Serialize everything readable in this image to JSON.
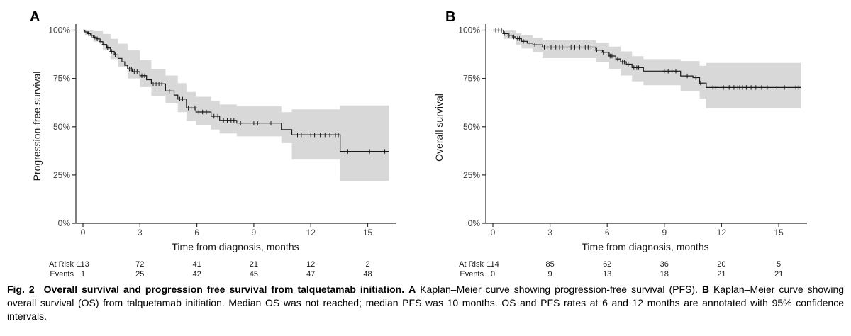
{
  "figure": {
    "panels": [
      {
        "letter": "A",
        "y_axis_label": "Progression-free survival",
        "x_axis_label": "Time from diagnosis, months",
        "y_ticks": [
          "100%",
          "75%",
          "50%",
          "25%",
          "0%"
        ],
        "x_ticks": [
          "0",
          "3",
          "6",
          "9",
          "12",
          "15"
        ],
        "risk_table": {
          "at_risk_label": "At Risk",
          "events_label": "Events",
          "at_risk": [
            "113",
            "72",
            "41",
            "21",
            "12",
            "2"
          ],
          "events": [
            "1",
            "25",
            "42",
            "45",
            "47",
            "48"
          ]
        }
      },
      {
        "letter": "B",
        "y_axis_label": "Overall survival",
        "x_axis_label": "Time from diagnosis, months",
        "y_ticks": [
          "100%",
          "75%",
          "50%",
          "25%",
          "0%"
        ],
        "x_ticks": [
          "0",
          "3",
          "6",
          "9",
          "12",
          "15"
        ],
        "risk_table": {
          "at_risk_label": "At Risk",
          "events_label": "Events",
          "at_risk": [
            "114",
            "85",
            "62",
            "36",
            "20",
            "5"
          ],
          "events": [
            "0",
            "9",
            "13",
            "18",
            "21",
            "21"
          ]
        }
      }
    ],
    "caption": {
      "runs": [
        {
          "text": "Fig. 2",
          "bold": true,
          "gap_after": true
        },
        {
          "text": "Overall survival and progression free survival from talquetamab initiation.",
          "bold": true
        },
        {
          "text": " ",
          "bold": false
        },
        {
          "text": "A",
          "bold": true
        },
        {
          "text": " Kaplan–Meier curve showing progression-free survival (PFS). ",
          "bold": false
        },
        {
          "text": "B",
          "bold": true
        },
        {
          "text": " Kaplan–Meier curve showing overall survival (OS) from talquetamab initiation. Median OS was not reached; median PFS was 10 months. OS and PFS rates at 6 and 12 months are annotated with 95% confidence intervals.",
          "bold": false
        }
      ]
    }
  },
  "colors": {
    "ci_band": "#d8d8d8",
    "curve": "#1a1a1a",
    "axis": "#2b2b2b",
    "tick_text": "#3d3d3d",
    "background": "#ffffff"
  },
  "chart_data": [
    {
      "type": "line",
      "subtype": "kaplan-meier-step",
      "panel": "A",
      "title": "Progression-free survival (PFS) from talquetamab initiation",
      "xlabel": "Time from diagnosis, months",
      "ylabel": "Progression-free survival",
      "xlim": [
        0,
        16.2
      ],
      "ylim": [
        0,
        100
      ],
      "x_ticks_months": [
        0,
        3,
        6,
        9,
        12,
        15
      ],
      "y_ticks_percent": [
        100,
        75,
        50,
        25,
        0
      ],
      "grid": false,
      "legend": "none",
      "median_months": 10,
      "steps_t_pct": [
        [
          0,
          100
        ],
        [
          0.1,
          99.1
        ],
        [
          0.25,
          98.2
        ],
        [
          0.4,
          97.3
        ],
        [
          0.55,
          96.4
        ],
        [
          0.7,
          95.5
        ],
        [
          0.9,
          94.0
        ],
        [
          1.05,
          92.6
        ],
        [
          1.25,
          90.8
        ],
        [
          1.45,
          89.0
        ],
        [
          1.65,
          87.2
        ],
        [
          1.85,
          85.4
        ],
        [
          2.05,
          83.6
        ],
        [
          2.2,
          81.8
        ],
        [
          2.35,
          79.9
        ],
        [
          2.6,
          78.5
        ],
        [
          3.0,
          76.4
        ],
        [
          3.35,
          74.3
        ],
        [
          3.6,
          72.2
        ],
        [
          4.35,
          68.5
        ],
        [
          4.8,
          66.4
        ],
        [
          5.0,
          64.3
        ],
        [
          5.45,
          59.7
        ],
        [
          5.95,
          57.6
        ],
        [
          6.75,
          55.4
        ],
        [
          7.2,
          53.3
        ],
        [
          8.1,
          51.9
        ],
        [
          10.45,
          48.5
        ],
        [
          11.0,
          45.8
        ],
        [
          13.55,
          37.2
        ],
        [
          16.1,
          37.2
        ]
      ],
      "censor_times": [
        0.2,
        0.3,
        0.45,
        0.6,
        0.75,
        0.95,
        1.1,
        1.3,
        1.5,
        1.7,
        2.45,
        2.55,
        2.7,
        2.85,
        3.1,
        3.25,
        3.7,
        3.85,
        4.0,
        4.15,
        4.55,
        5.1,
        5.25,
        5.55,
        5.7,
        5.9,
        6.1,
        6.3,
        6.5,
        6.9,
        7.1,
        7.4,
        7.6,
        7.8,
        7.95,
        8.3,
        9.0,
        9.2,
        9.9,
        11.3,
        11.5,
        11.75,
        12.0,
        12.2,
        12.5,
        12.75,
        13.0,
        13.3,
        13.45,
        13.8,
        13.95,
        15.1,
        15.9
      ],
      "ci_band_t_lo_hi": [
        [
          0.1,
          97.5,
          100
        ],
        [
          0.55,
          94,
          99.5
        ],
        [
          1.05,
          89.5,
          98
        ],
        [
          1.45,
          85,
          95.5
        ],
        [
          1.85,
          81,
          93
        ],
        [
          2.35,
          75,
          89.5
        ],
        [
          3.0,
          70.5,
          84.5
        ],
        [
          3.6,
          66,
          80
        ],
        [
          4.35,
          62,
          76.5
        ],
        [
          5.0,
          57.5,
          72.5
        ],
        [
          5.45,
          53,
          68
        ],
        [
          5.95,
          51,
          65.5
        ],
        [
          6.75,
          48.5,
          63.5
        ],
        [
          7.2,
          46.5,
          61.5
        ],
        [
          8.1,
          45,
          60.5
        ],
        [
          10.45,
          41.5,
          57.5
        ],
        [
          11.0,
          33,
          59
        ],
        [
          13.55,
          22,
          61
        ],
        [
          16.1,
          22,
          61
        ]
      ],
      "at_risk_table": {
        "times": [
          0,
          3,
          6,
          9,
          12,
          15
        ],
        "at_risk": [
          113,
          72,
          41,
          21,
          12,
          2
        ],
        "events": [
          1,
          25,
          42,
          45,
          47,
          48
        ]
      }
    },
    {
      "type": "line",
      "subtype": "kaplan-meier-step",
      "panel": "B",
      "title": "Overall survival (OS) from talquetamab initiation",
      "xlabel": "Time from diagnosis, months",
      "ylabel": "Overall survival",
      "xlim": [
        0,
        16.2
      ],
      "ylim": [
        0,
        100
      ],
      "x_ticks_months": [
        0,
        3,
        6,
        9,
        12,
        15
      ],
      "y_ticks_percent": [
        100,
        75,
        50,
        25,
        0
      ],
      "grid": false,
      "legend": "none",
      "median_months": "not reached",
      "steps_t_pct": [
        [
          0,
          100
        ],
        [
          0.55,
          98.2
        ],
        [
          0.8,
          97.4
        ],
        [
          1.05,
          96.5
        ],
        [
          1.2,
          95.6
        ],
        [
          1.5,
          94.2
        ],
        [
          1.8,
          93.3
        ],
        [
          2.1,
          92.4
        ],
        [
          2.6,
          91.2
        ],
        [
          5.4,
          89.6
        ],
        [
          5.75,
          88.5
        ],
        [
          6.1,
          86.6
        ],
        [
          6.45,
          85.1
        ],
        [
          6.7,
          83.6
        ],
        [
          7.0,
          82.4
        ],
        [
          7.3,
          80.6
        ],
        [
          7.9,
          78.8
        ],
        [
          9.85,
          76.3
        ],
        [
          10.5,
          75.4
        ],
        [
          10.85,
          72.6
        ],
        [
          11.2,
          70.3
        ],
        [
          16.15,
          70.3
        ]
      ],
      "censor_times": [
        0.15,
        0.3,
        0.45,
        0.6,
        0.85,
        0.95,
        1.1,
        1.3,
        1.4,
        1.6,
        1.95,
        2.2,
        2.7,
        2.85,
        3.05,
        3.3,
        3.5,
        3.65,
        4.1,
        4.3,
        4.55,
        4.85,
        5.0,
        5.15,
        5.45,
        5.8,
        6.15,
        6.25,
        6.55,
        6.8,
        6.9,
        7.1,
        7.4,
        7.55,
        7.65,
        9.0,
        9.2,
        9.4,
        9.6,
        10.2,
        10.65,
        10.9,
        11.55,
        11.7,
        12.1,
        12.4,
        12.65,
        12.85,
        12.95,
        13.1,
        13.3,
        13.55,
        13.8,
        14.1,
        14.4,
        14.9,
        15.3,
        15.9,
        16.05
      ],
      "ci_band_t_lo_hi": [
        [
          0.55,
          95.5,
          99.7
        ],
        [
          1.2,
          92.5,
          98.3
        ],
        [
          1.5,
          90.5,
          97.3
        ],
        [
          2.1,
          88.5,
          96
        ],
        [
          2.6,
          85.5,
          94.8
        ],
        [
          5.4,
          83.5,
          93.5
        ],
        [
          6.1,
          80,
          91.5
        ],
        [
          6.7,
          76.5,
          89
        ],
        [
          7.3,
          73.5,
          86.5
        ],
        [
          7.9,
          71.5,
          85
        ],
        [
          9.85,
          68.5,
          84
        ],
        [
          10.85,
          64.5,
          81.5
        ],
        [
          11.2,
          59.5,
          83
        ],
        [
          16.15,
          59.5,
          83
        ]
      ],
      "at_risk_table": {
        "times": [
          0,
          3,
          6,
          9,
          12,
          15
        ],
        "at_risk": [
          114,
          85,
          62,
          36,
          20,
          5
        ],
        "events": [
          0,
          9,
          13,
          18,
          21,
          21
        ]
      }
    }
  ]
}
